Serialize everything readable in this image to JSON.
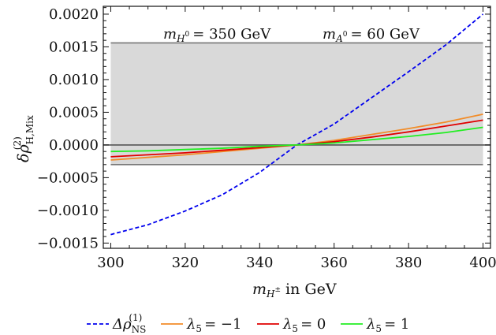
{
  "chart_data": {
    "type": "line",
    "title": "",
    "xlabel": "in GeV",
    "ylabel": "δρ(2)H,Mix",
    "xlim": [
      298,
      402
    ],
    "ylim": [
      -0.00158,
      0.00212
    ],
    "xticks": [
      300,
      320,
      340,
      360,
      380,
      400
    ],
    "xtick_labels": [
      "300",
      "320",
      "340",
      "360",
      "380",
      "400"
    ],
    "yticks": [
      -0.0015,
      -0.001,
      -0.0005,
      0.0,
      0.0005,
      0.001,
      0.0015,
      0.002
    ],
    "ytick_labels": [
      "−0.0015",
      "−0.0010",
      "−0.0005",
      "0.0000",
      "0.0005",
      "0.0010",
      "0.0015",
      "0.0020"
    ],
    "band": {
      "x": [
        300,
        400
      ],
      "y": [
        -0.0003,
        0.00156
      ],
      "color": "#d9d9d9"
    },
    "hlines": [
      0.00156,
      -0.0003,
      0.0
    ],
    "annotations": [
      {
        "text": "= 350 GeV",
        "symbol": "mH0"
      },
      {
        "text": "= 60 GeV",
        "symbol": "mA0"
      }
    ],
    "series": [
      {
        "name": "Δρ(1)NS",
        "color": "#0000ee",
        "dashed": true,
        "x": [
          300,
          310,
          320,
          330,
          340,
          350,
          360,
          370,
          380,
          390,
          400
        ],
        "y": [
          -0.00137,
          -0.00122,
          -0.00101,
          -0.00076,
          -0.00042,
          0.0,
          0.00032,
          0.00072,
          0.00112,
          0.00153,
          0.002
        ]
      },
      {
        "name": "λ5 = −1",
        "color": "#f28c28",
        "dashed": false,
        "x": [
          300,
          310,
          320,
          330,
          340,
          350,
          360,
          370,
          380,
          390,
          400
        ],
        "y": [
          -0.00023,
          -0.00019,
          -0.00015,
          -0.0001,
          -5e-05,
          0.0,
          7e-05,
          0.00016,
          0.00025,
          0.00035,
          0.00047
        ]
      },
      {
        "name": "λ5 = 0",
        "color": "#e00000",
        "dashed": false,
        "x": [
          300,
          310,
          320,
          330,
          340,
          350,
          360,
          370,
          380,
          390,
          400
        ],
        "y": [
          -0.00018,
          -0.00015,
          -0.00012,
          -8e-05,
          -4e-05,
          0.0,
          5e-05,
          0.00012,
          0.0002,
          0.00029,
          0.00038
        ]
      },
      {
        "name": "λ5 = 1",
        "color": "#22ee22",
        "dashed": false,
        "x": [
          300,
          310,
          320,
          330,
          340,
          350,
          360,
          370,
          380,
          390,
          400
        ],
        "y": [
          -0.0001,
          -9e-05,
          -7e-05,
          -5e-05,
          -2e-05,
          0.0,
          3e-05,
          8e-05,
          0.00013,
          0.00019,
          0.00027
        ]
      }
    ],
    "legend": {
      "placement": "bottom"
    }
  }
}
